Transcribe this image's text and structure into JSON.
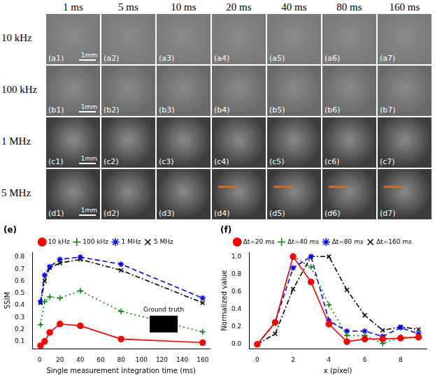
{
  "image_grid": {
    "columns": [
      "1 ms",
      "5 ms",
      "10 ms",
      "20 ms",
      "40 ms",
      "80 ms",
      "160 ms"
    ],
    "rows": [
      "10 kHz",
      "100 kHz",
      "1 MHz",
      "5 MHz"
    ],
    "panel_labels": [
      [
        "(a1)",
        "(a2)",
        "(a3)",
        "(a4)",
        "(a5)",
        "(a6)",
        "(a7)"
      ],
      [
        "(b1)",
        "(b2)",
        "(b3)",
        "(b4)",
        "(b5)",
        "(b6)",
        "(b7)"
      ],
      [
        "(c1)",
        "(c2)",
        "(c3)",
        "(c4)",
        "(c5)",
        "(c6)",
        "(c7)"
      ],
      [
        "(d1)",
        "(d2)",
        "(d3)",
        "(d4)",
        "(d5)",
        "(d6)",
        "(d7)"
      ]
    ],
    "scale_bar": "1mm",
    "marked_panels": [
      "(d4)",
      "(d5)",
      "(d6)",
      "(d7)"
    ]
  },
  "chart_data": [
    {
      "panel": "(e)",
      "type": "line",
      "x_label": "Single measurement integration time (ms)",
      "y_label": "SSIM",
      "x": [
        1,
        5,
        10,
        20,
        40,
        80,
        160
      ],
      "xlim": [
        -7,
        167
      ],
      "xticks": [
        0,
        20,
        40,
        60,
        80,
        100,
        120,
        140,
        160
      ],
      "ylim": [
        0.04,
        0.84
      ],
      "yticks": [
        0.1,
        0.2,
        0.3,
        0.4,
        0.5,
        0.6,
        0.7,
        0.8
      ],
      "grid": false,
      "legend": "top",
      "annotations": [
        "Ground truth"
      ],
      "series": [
        {
          "name": "10 kHz",
          "color": "#ff0000",
          "marker": "circle",
          "line_style": "solid",
          "values": [
            0.065,
            0.1,
            0.175,
            0.245,
            0.23,
            0.12,
            0.09
          ]
        },
        {
          "name": "100 kHz",
          "color": "#008000",
          "marker": "plus",
          "line_style": "dotted",
          "values": [
            0.24,
            0.43,
            0.47,
            0.46,
            0.52,
            0.35,
            0.18
          ]
        },
        {
          "name": "1 MHz",
          "color": "#0000ff",
          "marker": "star",
          "line_style": "dashed",
          "values": [
            0.43,
            0.65,
            0.72,
            0.78,
            0.8,
            0.74,
            0.46
          ]
        },
        {
          "name": "5 MHz",
          "color": "#000000",
          "marker": "x",
          "line_style": "dashdot",
          "values": [
            0.42,
            0.6,
            0.71,
            0.75,
            0.78,
            0.69,
            0.42
          ]
        }
      ]
    },
    {
      "panel": "(f)",
      "type": "line",
      "x_label": "x (pixel)",
      "y_label": "Normalized value",
      "x": [
        0,
        1,
        2,
        3,
        4,
        5,
        6,
        7,
        8,
        9
      ],
      "xlim": [
        -0.45,
        9.45
      ],
      "xticks": [
        0,
        2,
        4,
        6,
        8
      ],
      "ylim": [
        -0.05,
        1.05
      ],
      "yticks": [
        {
          "value": 0,
          "label": "0.0"
        },
        0.2,
        0.4,
        0.6,
        0.8,
        {
          "value": 1,
          "label": "1.0"
        }
      ],
      "grid": false,
      "legend": "top",
      "series": [
        {
          "name": "Δt=20 ms",
          "color": "#ff0000",
          "marker": "circle",
          "line_style": "solid",
          "values": [
            0,
            0.25,
            1.0,
            0.71,
            0.23,
            0.03,
            0.06,
            0.06,
            0.07,
            0.08
          ]
        },
        {
          "name": "Δt=40 ms",
          "color": "#008000",
          "marker": "plus",
          "line_style": "dotted",
          "values": [
            0,
            0.24,
            1.0,
            0.88,
            0.45,
            0.1,
            0.1,
            0.01,
            0.08,
            0.08
          ]
        },
        {
          "name": "Δt=80 ms",
          "color": "#0000ff",
          "marker": "star",
          "line_style": "dashed",
          "values": [
            0,
            0.25,
            0.87,
            1.0,
            0.27,
            0.15,
            0.15,
            0.09,
            0.19,
            0.12
          ]
        },
        {
          "name": "Δt=160 ms",
          "color": "#000000",
          "marker": "x",
          "line_style": "dashdot",
          "values": [
            0,
            0.12,
            0.63,
            1.0,
            1.0,
            0.62,
            0.33,
            0.16,
            0.2,
            0.17
          ]
        }
      ]
    }
  ]
}
